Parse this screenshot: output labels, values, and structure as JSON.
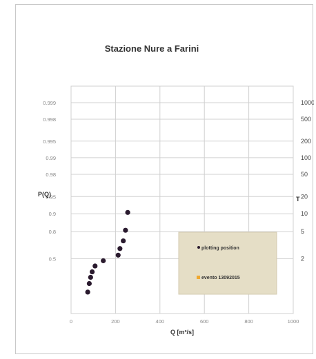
{
  "chart_data": {
    "type": "scatter",
    "title": "Stazione Nure a Farini",
    "xlabel": "Q [m³/s]",
    "ylabel": "P(Q)",
    "y2label": "T",
    "xlim": [
      0,
      1000
    ],
    "x_ticks": [
      "0",
      "200",
      "400",
      "600",
      "800",
      "1000"
    ],
    "y_probability_ticks": [
      {
        "p": 0.999,
        "label": "0.999"
      },
      {
        "p": 0.998,
        "label": "0.998"
      },
      {
        "p": 0.995,
        "label": "0.995"
      },
      {
        "p": 0.99,
        "label": "0.99"
      },
      {
        "p": 0.98,
        "label": "0.98"
      },
      {
        "p": 0.95,
        "label": "0.95"
      },
      {
        "p": 0.9,
        "label": "0.9"
      },
      {
        "p": 0.8,
        "label": "0.8"
      },
      {
        "p": 0.5,
        "label": "0.5"
      }
    ],
    "y2_return_period_ticks": [
      {
        "p": 0.999,
        "label": "1000"
      },
      {
        "p": 0.998,
        "label": "500"
      },
      {
        "p": 0.995,
        "label": "200"
      },
      {
        "p": 0.99,
        "label": "100"
      },
      {
        "p": 0.98,
        "label": "50"
      },
      {
        "p": 0.95,
        "label": "20"
      },
      {
        "p": 0.9,
        "label": "10"
      },
      {
        "p": 0.8,
        "label": "5"
      },
      {
        "p": 0.5,
        "label": "2"
      }
    ],
    "grid": true,
    "legend_placement": "lower-right",
    "series": [
      {
        "name": "plotting position",
        "color": "#2a1a2e",
        "points": [
          {
            "x": 75,
            "p": 0.06
          },
          {
            "x": 82,
            "p": 0.14
          },
          {
            "x": 88,
            "p": 0.22
          },
          {
            "x": 95,
            "p": 0.3
          },
          {
            "x": 108,
            "p": 0.39
          },
          {
            "x": 145,
            "p": 0.47
          },
          {
            "x": 212,
            "p": 0.55
          },
          {
            "x": 220,
            "p": 0.635
          },
          {
            "x": 235,
            "p": 0.72
          },
          {
            "x": 245,
            "p": 0.81
          },
          {
            "x": 255,
            "p": 0.905
          }
        ]
      },
      {
        "name": "evento 13092015",
        "color": "#f0a830",
        "points": []
      }
    ]
  }
}
